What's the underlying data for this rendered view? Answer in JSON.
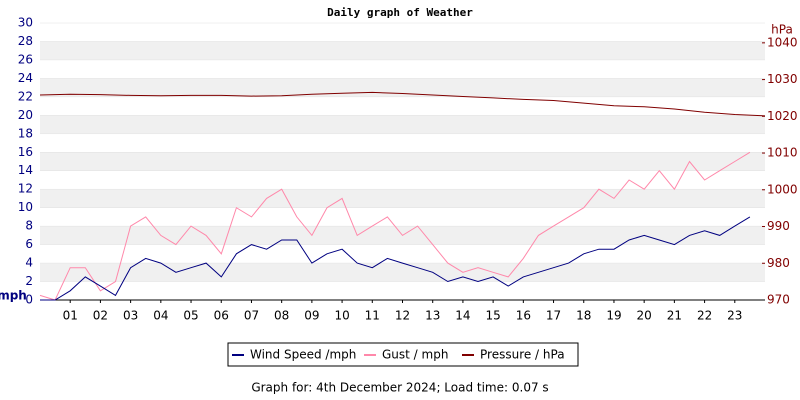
{
  "chart_data": {
    "type": "line",
    "title": "Daily graph of Weather",
    "ylabel": "mph",
    "y2label": "hPa",
    "footer": "Graph for: 4th December 2024; Load time: 0.07 s",
    "xlim": [
      0,
      24
    ],
    "xticks": [
      {
        "value": 1,
        "label": "01"
      },
      {
        "value": 2,
        "label": "02"
      },
      {
        "value": 3,
        "label": "03"
      },
      {
        "value": 4,
        "label": "04"
      },
      {
        "value": 5,
        "label": "05"
      },
      {
        "value": 6,
        "label": "06"
      },
      {
        "value": 7,
        "label": "07"
      },
      {
        "value": 8,
        "label": "08"
      },
      {
        "value": 9,
        "label": "09"
      },
      10,
      11,
      12,
      13,
      14,
      15,
      16,
      17,
      18,
      19,
      20,
      21,
      22,
      23
    ],
    "ylim": [
      0,
      30
    ],
    "yticks": [
      0,
      2,
      4,
      6,
      8,
      10,
      12,
      14,
      16,
      18,
      20,
      22,
      24,
      26,
      28,
      30
    ],
    "y2lim": [
      970,
      1045.4
    ],
    "y2ticks": [
      970,
      980,
      990,
      1000,
      1010,
      1020,
      1030,
      1040
    ],
    "legend": "bottom",
    "series": [
      {
        "name": "Wind Speed /mph",
        "color": "#000080",
        "x": [
          0,
          0.5,
          1,
          1.5,
          2,
          2.5,
          3,
          3.5,
          4,
          4.5,
          5,
          5.5,
          6,
          6.5,
          7,
          7.5,
          8,
          8.5,
          9,
          9.5,
          10,
          10.5,
          11,
          11.5,
          12,
          12.5,
          13,
          13.5,
          14,
          14.5,
          15,
          15.5,
          16,
          16.5,
          17,
          17.5,
          18,
          18.5,
          19,
          19.5,
          20,
          20.5,
          21,
          21.5,
          22,
          22.5,
          23,
          23.5
        ],
        "values": [
          0,
          0,
          1,
          2.5,
          1.5,
          0.5,
          3.5,
          4.5,
          4,
          3,
          3.5,
          4,
          2.5,
          5,
          6,
          5.5,
          6.5,
          6.5,
          4,
          5,
          5.5,
          4,
          3.5,
          4.5,
          4,
          3.5,
          3,
          2,
          2.5,
          2,
          2.5,
          1.5,
          2.5,
          3,
          3.5,
          4,
          5,
          5.5,
          5.5,
          6.5,
          7,
          6.5,
          6,
          7,
          7.5,
          7,
          8,
          9
        ]
      },
      {
        "name": "Gust / mph",
        "color": "#ff88aa",
        "x": [
          0,
          0.5,
          1,
          1.5,
          2,
          2.5,
          3,
          3.5,
          4,
          4.5,
          5,
          5.5,
          6,
          6.5,
          7,
          7.5,
          8,
          8.5,
          9,
          9.5,
          10,
          10.5,
          11,
          11.5,
          12,
          12.5,
          13,
          13.5,
          14,
          14.5,
          15,
          15.5,
          16,
          16.5,
          17,
          17.5,
          18,
          18.5,
          19,
          19.5,
          20,
          20.5,
          21,
          21.5,
          22,
          22.5,
          23,
          23.5
        ],
        "values": [
          0.5,
          0,
          3.5,
          3.5,
          1,
          2,
          8,
          9,
          7,
          6,
          8,
          7,
          5,
          10,
          9,
          11,
          12,
          9,
          7,
          10,
          11,
          7,
          8,
          9,
          7,
          8,
          6,
          4,
          3,
          3.5,
          3,
          2.5,
          4.5,
          7,
          8,
          9,
          10,
          12,
          11,
          13,
          12,
          14,
          12,
          15,
          13,
          14,
          15,
          16
        ]
      },
      {
        "name": "Pressure / hPa",
        "color": "#800000",
        "axis": "y2",
        "x": [
          0,
          1,
          2,
          3,
          4,
          5,
          6,
          7,
          8,
          9,
          10,
          11,
          12,
          13,
          14,
          15,
          16,
          17,
          18,
          19,
          20,
          21,
          22,
          23,
          24
        ],
        "values": [
          1025.8,
          1026,
          1025.9,
          1025.7,
          1025.6,
          1025.7,
          1025.7,
          1025.5,
          1025.6,
          1026,
          1026.3,
          1026.5,
          1026.2,
          1025.8,
          1025.4,
          1025,
          1024.6,
          1024.3,
          1023.6,
          1022.9,
          1022.6,
          1022,
          1021.1,
          1020.5,
          1020.1
        ]
      }
    ]
  }
}
